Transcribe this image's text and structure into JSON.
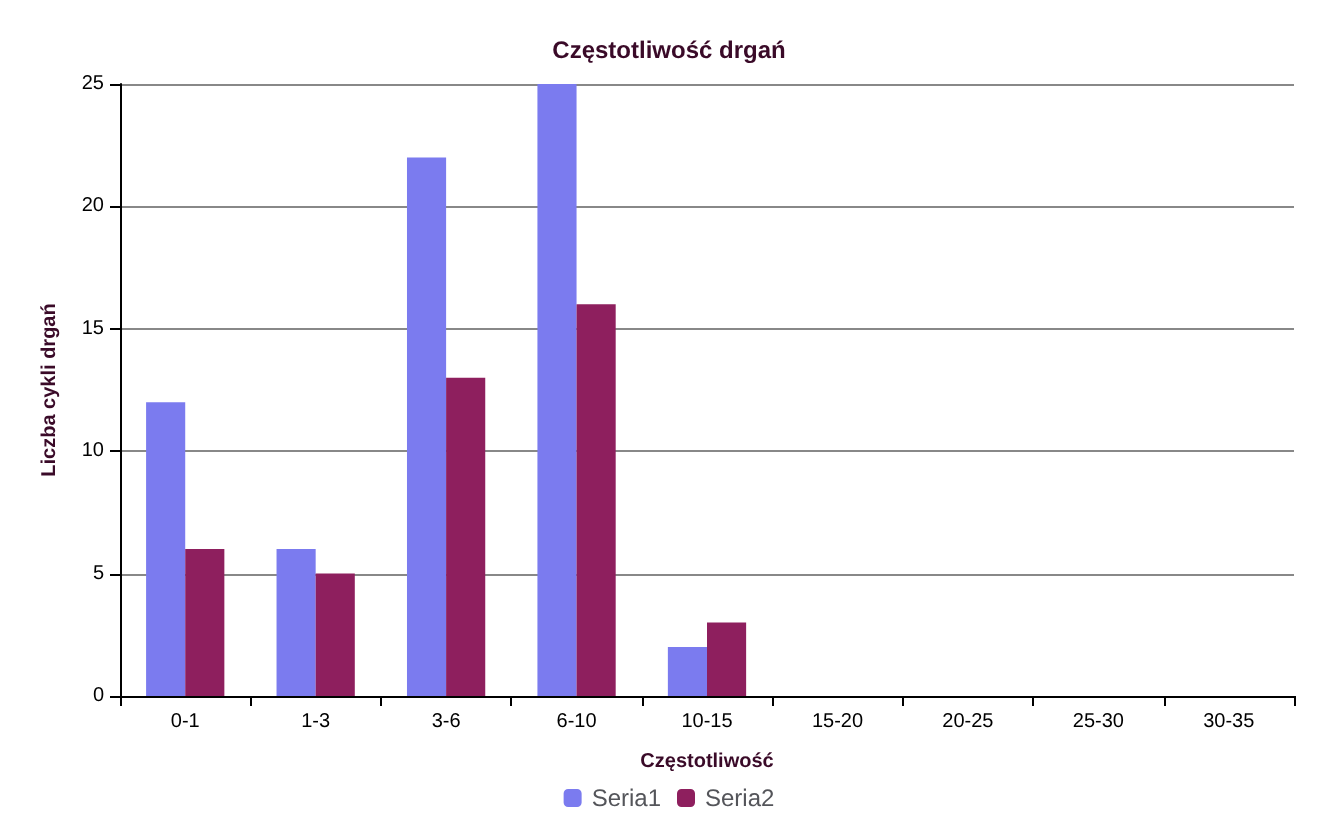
{
  "chart_data": {
    "type": "bar",
    "title": "Częstotliwość drgań",
    "xlabel": "Częstotliwość",
    "ylabel": "Liczba cykli drgań",
    "categories": [
      "0-1",
      "1-3",
      "3-6",
      "6-10",
      "10-15",
      "15-20",
      "20-25",
      "25-30",
      "30-35"
    ],
    "series": [
      {
        "name": "Seria1",
        "color": "#7b7bef",
        "values": [
          12,
          6,
          22,
          25,
          2,
          0,
          0,
          0,
          0
        ]
      },
      {
        "name": "Seria2",
        "color": "#8e1f5e",
        "values": [
          6,
          5,
          13,
          16,
          3,
          0,
          0,
          0,
          0
        ]
      }
    ],
    "ylim": [
      0,
      25
    ],
    "yticks": [
      0,
      5,
      10,
      15,
      20,
      25
    ],
    "grid": "y",
    "legend": "bottom"
  }
}
